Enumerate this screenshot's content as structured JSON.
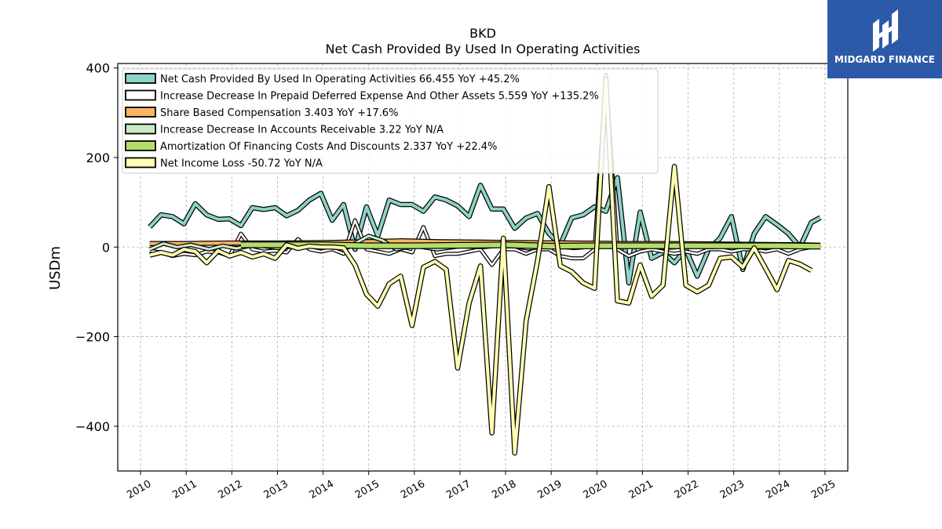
{
  "chart_data": {
    "type": "line",
    "title": "BKD",
    "subtitle": "Net Cash Provided By Used In Operating Activities",
    "xlabel": "",
    "ylabel": "USDm",
    "xlim": [
      2009.5,
      2025.5
    ],
    "ylim": [
      -500,
      410
    ],
    "yticks": [
      400,
      200,
      0,
      -200,
      -400
    ],
    "ytick_labels": [
      "400",
      "200",
      "0",
      "−200",
      "−400"
    ],
    "xticks": [
      2010,
      2011,
      2012,
      2013,
      2014,
      2015,
      2016,
      2017,
      2018,
      2019,
      2020,
      2021,
      2022,
      2023,
      2024,
      2025
    ],
    "xtick_labels": [
      "2010",
      "2011",
      "2012",
      "2013",
      "2014",
      "2015",
      "2016",
      "2017",
      "2018",
      "2019",
      "2020",
      "2021",
      "2022",
      "2023",
      "2024",
      "2025"
    ],
    "grid": true,
    "legend_position": "top-left",
    "series": [
      {
        "name": "Net Cash Provided By Used In Operating Activities",
        "legend_label": "Net Cash Provided By Used In Operating Activities  66.455 YoY +45.2%",
        "color": "#8dd3c7",
        "width": 4,
        "points": [
          [
            2010.2,
            45
          ],
          [
            2010.45,
            72
          ],
          [
            2010.7,
            68
          ],
          [
            2010.95,
            52
          ],
          [
            2011.2,
            97
          ],
          [
            2011.45,
            72
          ],
          [
            2011.7,
            62
          ],
          [
            2011.95,
            63
          ],
          [
            2012.2,
            48
          ],
          [
            2012.45,
            88
          ],
          [
            2012.7,
            84
          ],
          [
            2012.95,
            88
          ],
          [
            2013.2,
            70
          ],
          [
            2013.45,
            82
          ],
          [
            2013.7,
            105
          ],
          [
            2013.95,
            120
          ],
          [
            2014.2,
            60
          ],
          [
            2014.45,
            95
          ],
          [
            2014.7,
            -5
          ],
          [
            2014.95,
            90
          ],
          [
            2015.2,
            25
          ],
          [
            2015.45,
            105
          ],
          [
            2015.7,
            95
          ],
          [
            2015.95,
            95
          ],
          [
            2016.2,
            80
          ],
          [
            2016.45,
            112
          ],
          [
            2016.7,
            105
          ],
          [
            2016.95,
            92
          ],
          [
            2017.2,
            68
          ],
          [
            2017.45,
            138
          ],
          [
            2017.7,
            85
          ],
          [
            2017.95,
            85
          ],
          [
            2018.2,
            42
          ],
          [
            2018.45,
            65
          ],
          [
            2018.7,
            75
          ],
          [
            2018.95,
            30
          ],
          [
            2019.2,
            5
          ],
          [
            2019.45,
            65
          ],
          [
            2019.7,
            72
          ],
          [
            2019.95,
            90
          ],
          [
            2020.2,
            80
          ],
          [
            2020.45,
            155
          ],
          [
            2020.7,
            -80
          ],
          [
            2020.95,
            78
          ],
          [
            2021.2,
            -25
          ],
          [
            2021.45,
            -12
          ],
          [
            2021.7,
            -35
          ],
          [
            2021.95,
            -5
          ],
          [
            2022.2,
            -65
          ],
          [
            2022.45,
            -5
          ],
          [
            2022.7,
            20
          ],
          [
            2022.95,
            68
          ],
          [
            2023.2,
            -50
          ],
          [
            2023.45,
            30
          ],
          [
            2023.7,
            68
          ],
          [
            2023.95,
            50
          ],
          [
            2024.2,
            30
          ],
          [
            2024.45,
            0
          ],
          [
            2024.7,
            55
          ],
          [
            2024.9,
            66
          ]
        ]
      },
      {
        "name": "Increase Decrease In Prepaid Deferred Expense And Other Assets",
        "legend_label": "Increase Decrease In Prepaid Deferred Expense And Other Assets  5.559 YoY +135.2%",
        "color": "#ffffff",
        "width": 2.5,
        "points": [
          [
            2010.2,
            -8
          ],
          [
            2010.45,
            -12
          ],
          [
            2010.7,
            -20
          ],
          [
            2010.95,
            -15
          ],
          [
            2011.2,
            -18
          ],
          [
            2011.45,
            -10
          ],
          [
            2011.7,
            -12
          ],
          [
            2011.95,
            -20
          ],
          [
            2012.2,
            30
          ],
          [
            2012.45,
            -5
          ],
          [
            2012.7,
            -10
          ],
          [
            2012.95,
            -8
          ],
          [
            2013.2,
            -12
          ],
          [
            2013.45,
            18
          ],
          [
            2013.7,
            -5
          ],
          [
            2013.95,
            -10
          ],
          [
            2014.2,
            -5
          ],
          [
            2014.45,
            -15
          ],
          [
            2014.7,
            60
          ],
          [
            2014.95,
            -5
          ],
          [
            2015.2,
            -10
          ],
          [
            2015.45,
            -15
          ],
          [
            2015.7,
            -5
          ],
          [
            2015.95,
            -12
          ],
          [
            2016.2,
            45
          ],
          [
            2016.45,
            -20
          ],
          [
            2016.7,
            -15
          ],
          [
            2016.95,
            -15
          ],
          [
            2017.2,
            -10
          ],
          [
            2017.45,
            -5
          ],
          [
            2017.7,
            -40
          ],
          [
            2017.95,
            -5
          ],
          [
            2018.2,
            -5
          ],
          [
            2018.45,
            -15
          ],
          [
            2018.7,
            -5
          ],
          [
            2018.95,
            -5
          ],
          [
            2019.2,
            -20
          ],
          [
            2019.45,
            -25
          ],
          [
            2019.7,
            -25
          ],
          [
            2019.95,
            -5
          ],
          [
            2020.2,
            385
          ],
          [
            2020.45,
            -5
          ],
          [
            2020.7,
            -20
          ],
          [
            2020.95,
            -10
          ],
          [
            2021.2,
            -5
          ],
          [
            2021.45,
            -10
          ],
          [
            2021.7,
            -15
          ],
          [
            2021.95,
            -10
          ],
          [
            2022.2,
            -15
          ],
          [
            2022.45,
            -5
          ],
          [
            2022.7,
            -5
          ],
          [
            2022.95,
            -10
          ],
          [
            2023.2,
            -5
          ],
          [
            2023.45,
            -5
          ],
          [
            2023.7,
            -10
          ],
          [
            2023.95,
            -5
          ],
          [
            2024.2,
            -15
          ],
          [
            2024.45,
            -5
          ],
          [
            2024.7,
            0
          ],
          [
            2024.9,
            5
          ]
        ]
      },
      {
        "name": "Share Based Compensation",
        "legend_label": "Share Based Compensation  3.403 YoY +17.6%",
        "color": "#fdb462",
        "width": 4,
        "points": [
          [
            2010.2,
            8
          ],
          [
            2011.0,
            8
          ],
          [
            2012.0,
            9
          ],
          [
            2013.0,
            9
          ],
          [
            2014.0,
            10
          ],
          [
            2015.0,
            12
          ],
          [
            2015.7,
            14
          ],
          [
            2016.5,
            12
          ],
          [
            2017.5,
            11
          ],
          [
            2018.5,
            10
          ],
          [
            2019.5,
            9
          ],
          [
            2020.5,
            8
          ],
          [
            2021.5,
            8
          ],
          [
            2022.5,
            7
          ],
          [
            2023.5,
            6
          ],
          [
            2024.5,
            5
          ],
          [
            2024.9,
            4
          ]
        ]
      },
      {
        "name": "Increase Decrease In Accounts Receivable",
        "legend_label": "Increase Decrease In Accounts Receivable  3.22 YoY N/A",
        "color": "#ccebc5",
        "width": 3,
        "points": [
          [
            2010.2,
            -5
          ],
          [
            2010.5,
            8
          ],
          [
            2010.8,
            0
          ],
          [
            2011.1,
            5
          ],
          [
            2011.5,
            -5
          ],
          [
            2011.8,
            3
          ],
          [
            2012.1,
            -3
          ],
          [
            2012.5,
            5
          ],
          [
            2013.0,
            -2
          ],
          [
            2013.5,
            3
          ],
          [
            2014.0,
            0
          ],
          [
            2014.5,
            -3
          ],
          [
            2015.0,
            25
          ],
          [
            2015.3,
            15
          ],
          [
            2015.6,
            -5
          ],
          [
            2016.0,
            3
          ],
          [
            2016.5,
            -5
          ],
          [
            2017.0,
            2
          ],
          [
            2017.5,
            0
          ],
          [
            2018.0,
            5
          ],
          [
            2018.5,
            -3
          ],
          [
            2019.0,
            3
          ],
          [
            2019.5,
            -2
          ],
          [
            2020.0,
            2
          ],
          [
            2020.5,
            0
          ],
          [
            2021.0,
            3
          ],
          [
            2021.5,
            -2
          ],
          [
            2022.0,
            2
          ],
          [
            2022.5,
            0
          ],
          [
            2023.0,
            3
          ],
          [
            2023.5,
            -2
          ],
          [
            2024.0,
            2
          ],
          [
            2024.5,
            0
          ],
          [
            2024.9,
            3
          ]
        ]
      },
      {
        "name": "Amortization Of Financing Costs And Discounts",
        "legend_label": "Amortization Of Financing Costs And Discounts  2.337 YoY +22.4%",
        "color": "#b3de69",
        "width": 6,
        "points": [
          [
            2012.2,
            5
          ],
          [
            2013.0,
            5
          ],
          [
            2014.0,
            5
          ],
          [
            2015.0,
            3
          ],
          [
            2016.0,
            3
          ],
          [
            2017.0,
            4
          ],
          [
            2018.0,
            5
          ],
          [
            2019.0,
            2
          ],
          [
            2020.0,
            3
          ],
          [
            2021.0,
            3
          ],
          [
            2022.0,
            3
          ],
          [
            2023.0,
            3
          ],
          [
            2024.0,
            3
          ],
          [
            2024.9,
            2
          ]
        ]
      },
      {
        "name": "Net Income Loss",
        "legend_label": "Net Income Loss  -50.72 YoY N/A",
        "color": "#ffffb3",
        "width": 4,
        "points": [
          [
            2010.2,
            -18
          ],
          [
            2010.45,
            -12
          ],
          [
            2010.7,
            -18
          ],
          [
            2010.95,
            -5
          ],
          [
            2011.2,
            -10
          ],
          [
            2011.45,
            -35
          ],
          [
            2011.7,
            -8
          ],
          [
            2011.95,
            -20
          ],
          [
            2012.2,
            -12
          ],
          [
            2012.45,
            -22
          ],
          [
            2012.7,
            -15
          ],
          [
            2012.95,
            -25
          ],
          [
            2013.2,
            5
          ],
          [
            2013.45,
            -3
          ],
          [
            2013.7,
            2
          ],
          [
            2013.95,
            0
          ],
          [
            2014.2,
            0
          ],
          [
            2014.45,
            -2
          ],
          [
            2014.7,
            -40
          ],
          [
            2014.95,
            -105
          ],
          [
            2015.2,
            -132
          ],
          [
            2015.45,
            -82
          ],
          [
            2015.7,
            -65
          ],
          [
            2015.95,
            -175
          ],
          [
            2016.2,
            -45
          ],
          [
            2016.45,
            -32
          ],
          [
            2016.7,
            -50
          ],
          [
            2016.95,
            -270
          ],
          [
            2017.2,
            -125
          ],
          [
            2017.45,
            -42
          ],
          [
            2017.7,
            -415
          ],
          [
            2017.95,
            20
          ],
          [
            2018.2,
            -460
          ],
          [
            2018.45,
            -165
          ],
          [
            2018.7,
            -30
          ],
          [
            2018.95,
            135
          ],
          [
            2019.2,
            -42
          ],
          [
            2019.45,
            -55
          ],
          [
            2019.7,
            -80
          ],
          [
            2019.95,
            -92
          ],
          [
            2020.2,
            375
          ],
          [
            2020.45,
            -120
          ],
          [
            2020.7,
            -125
          ],
          [
            2020.95,
            -40
          ],
          [
            2021.2,
            -110
          ],
          [
            2021.45,
            -85
          ],
          [
            2021.7,
            180
          ],
          [
            2021.95,
            -85
          ],
          [
            2022.2,
            -100
          ],
          [
            2022.45,
            -85
          ],
          [
            2022.7,
            -25
          ],
          [
            2022.95,
            -22
          ],
          [
            2023.2,
            -45
          ],
          [
            2023.45,
            -2
          ],
          [
            2023.7,
            -48
          ],
          [
            2023.95,
            -95
          ],
          [
            2024.2,
            -30
          ],
          [
            2024.45,
            -38
          ],
          [
            2024.7,
            -52
          ]
        ]
      }
    ]
  },
  "logo": {
    "text": "MIDGARD FINANCE",
    "bg_color": "#2d5aa8"
  }
}
